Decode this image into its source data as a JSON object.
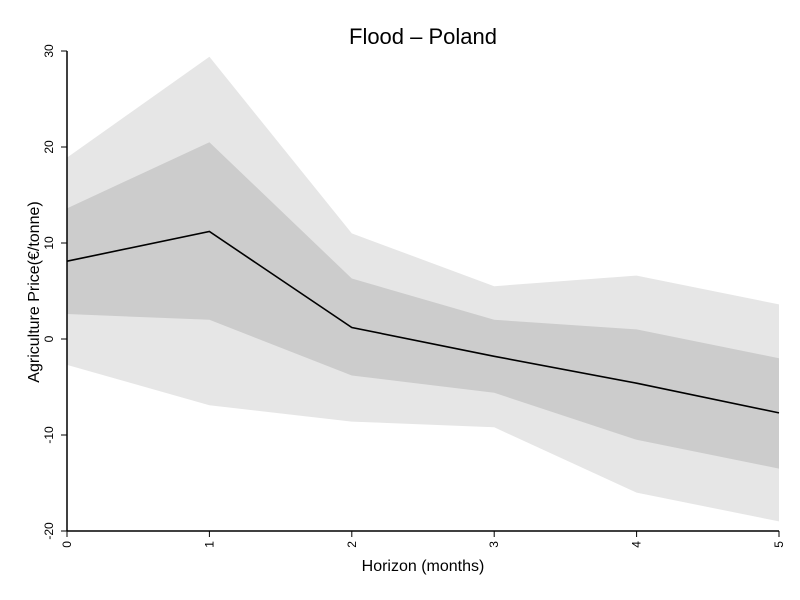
{
  "chart_data": {
    "type": "area",
    "title": "Flood – Poland",
    "xlabel": "Horizon (months)",
    "ylabel": "Agriculture Price(€/tonne)",
    "x": [
      0,
      1,
      2,
      3,
      4,
      5
    ],
    "xlim": [
      0,
      5
    ],
    "ylim": [
      -20,
      30
    ],
    "xticks": [
      "0",
      "1",
      "2",
      "3",
      "4",
      "5"
    ],
    "yticks": [
      "-20",
      "-10",
      "0",
      "10",
      "20",
      "30"
    ],
    "grid": false,
    "legend": "none",
    "bands": [
      {
        "lower": [
          -2.7,
          -6.9,
          -8.6,
          -9.2,
          -16.0,
          -19.0
        ],
        "upper": [
          18.9,
          29.4,
          11.0,
          5.5,
          6.6,
          3.6
        ],
        "color": "#e6e6e6"
      },
      {
        "lower": [
          2.6,
          2.0,
          -3.8,
          -5.6,
          -10.5,
          -13.5
        ],
        "upper": [
          13.6,
          20.5,
          6.3,
          2.0,
          1.0,
          -2.0
        ],
        "color": "#cccccc"
      }
    ],
    "series": [
      {
        "values": [
          8.1,
          11.2,
          1.2,
          -1.8,
          -4.6,
          -7.7
        ],
        "color": "#000000"
      }
    ]
  }
}
